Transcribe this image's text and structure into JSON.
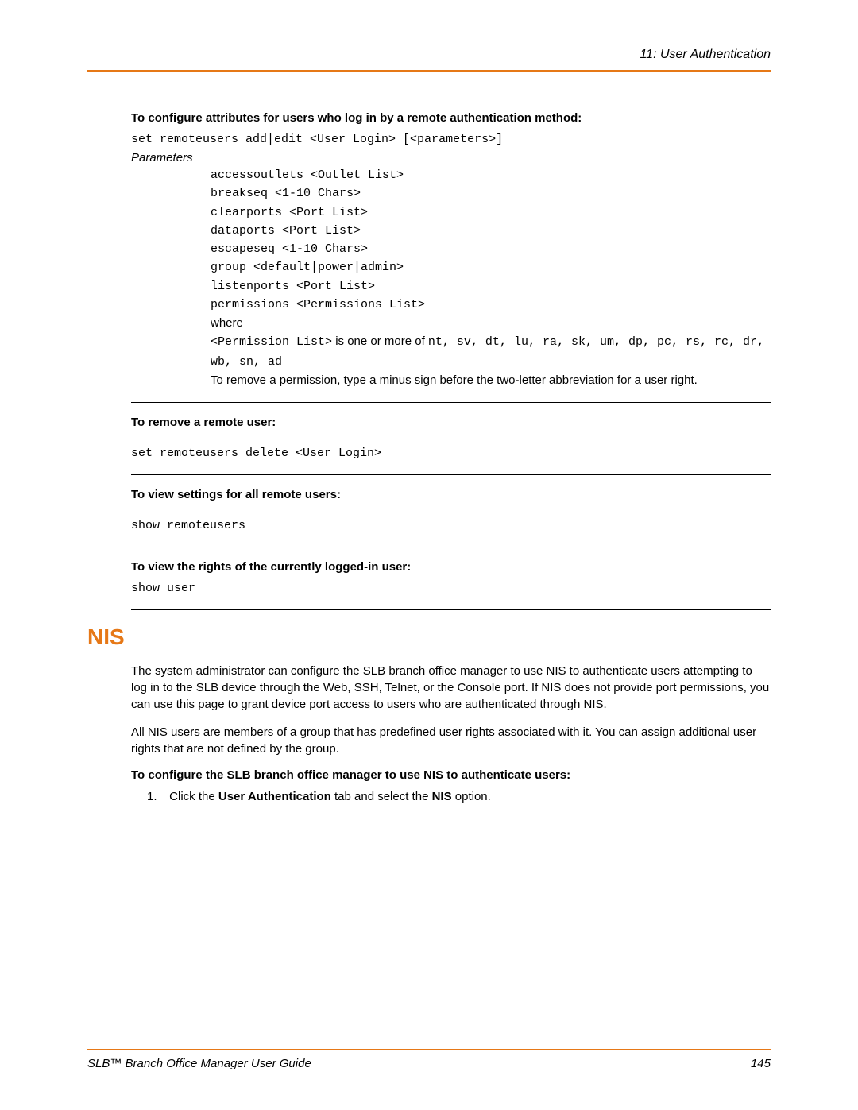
{
  "header": {
    "breadcrumb": "11: User Authentication"
  },
  "section1": {
    "heading": "To configure attributes for users who log in by a remote authentication method:",
    "command": "set remoteusers add|edit <User Login> [<parameters>]",
    "paramsLabel": "Parameters",
    "params": [
      "accessoutlets <Outlet List>",
      "breakseq <1-10 Chars>",
      "clearports <Port List>",
      "dataports <Port List>",
      "escapeseq <1-10 Chars>",
      "group <default|power|admin>",
      "listenports <Port List>",
      "permissions <Permissions List>"
    ],
    "whereLabel": "where",
    "permListMono1": "<Permission List>",
    "permListText1": " is one or more of ",
    "permListMono2": "nt, sv, dt, lu, ra, sk, um, dp, pc, rs, rc, dr, wb, sn, ad",
    "removeNote": "To remove a permission, type a minus sign before the two-letter abbreviation for a user right."
  },
  "section2": {
    "heading": "To remove a remote user:",
    "command": "set remoteusers delete <User Login>"
  },
  "section3": {
    "heading": "To view settings for all remote users:",
    "command": "show remoteusers"
  },
  "section4": {
    "heading": "To view the rights of the currently logged-in user:",
    "command": "show user"
  },
  "nis": {
    "title": "NIS",
    "para1": "The system administrator can configure the SLB branch office manager to use NIS to authenticate users attempting to log in to the SLB device through the Web, SSH, Telnet, or the Console port. If NIS does not provide port permissions, you can use this page to grant device port access to users who are authenticated through NIS.",
    "para2": "All NIS users are members of a group that has predefined user rights associated with it. You can assign additional user rights that are not defined by the group.",
    "heading": "To configure the SLB branch office manager to use NIS to authenticate users:",
    "stepNum": "1.",
    "stepPrefix": "Click the ",
    "stepBold1": "User Authentication",
    "stepMid": " tab and select the ",
    "stepBold2": "NIS",
    "stepSuffix": " option."
  },
  "footer": {
    "guide": "SLB™ Branch Office Manager User Guide",
    "page": "145"
  },
  "colors": {
    "accent": "#e67817"
  }
}
